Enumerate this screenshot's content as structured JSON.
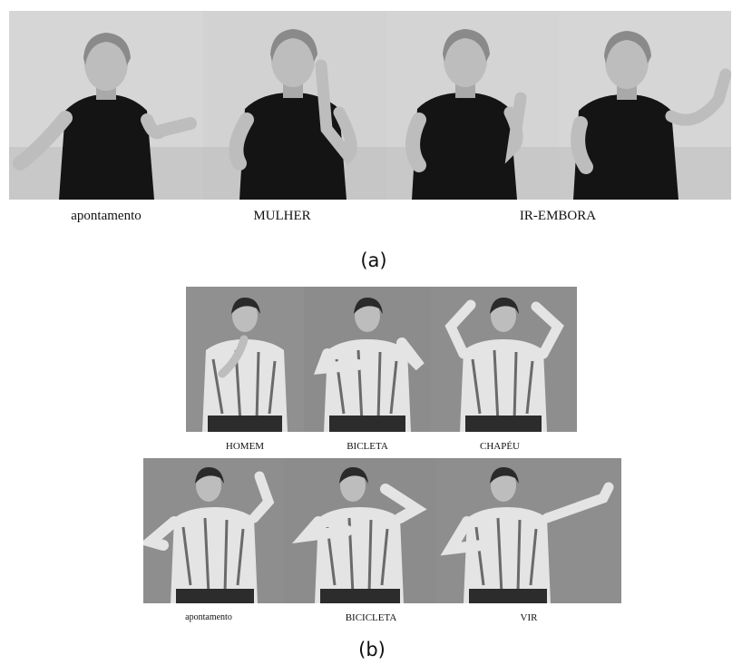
{
  "panel_a": {
    "label": "(a)",
    "captions": [
      "apontamento",
      "MULHER",
      "IR-EMBORA"
    ],
    "frames": [
      {
        "icon": "woman-signing-photo"
      },
      {
        "icon": "woman-signing-photo"
      },
      {
        "icon": "woman-signing-photo"
      },
      {
        "icon": "woman-signing-photo"
      }
    ]
  },
  "panel_b": {
    "label": "(b)",
    "row1_captions": [
      "HOMEM",
      "BICLETA",
      "CHAPÉU"
    ],
    "row2_captions": [
      "apontamento",
      "BICICLETA",
      "VIR"
    ],
    "row1_frames": [
      {
        "icon": "woman-signing-photo"
      },
      {
        "icon": "woman-signing-photo"
      },
      {
        "icon": "woman-signing-photo"
      }
    ],
    "row2_frames": [
      {
        "icon": "woman-signing-photo"
      },
      {
        "icon": "woman-signing-photo"
      },
      {
        "icon": "woman-signing-photo"
      }
    ]
  },
  "colors": {
    "wall_a": "#d4d4d4",
    "wall_b": "#8e8e8e",
    "shirt_a": "#141414",
    "skin": "#bdbdbd",
    "shirt_b": "#e6e6e6"
  }
}
